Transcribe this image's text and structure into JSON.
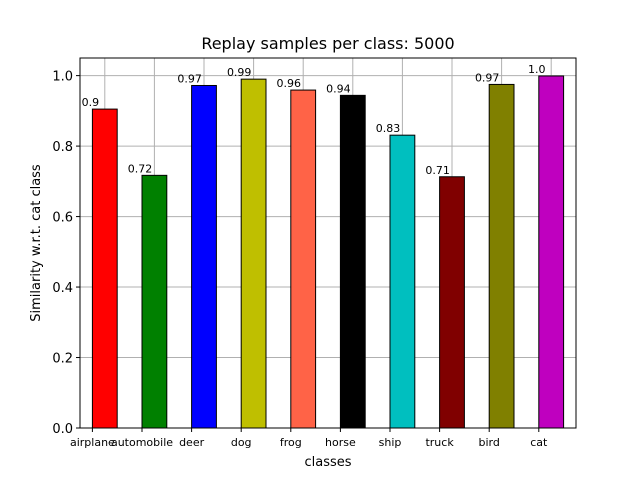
{
  "chart_data": {
    "type": "bar",
    "title": "Replay samples per class: 5000",
    "xlabel": "classes",
    "ylabel": "Similarity w.r.t. cat class",
    "categories": [
      "airplane",
      "automobile",
      "deer",
      "dog",
      "frog",
      "horse",
      "ship",
      "truck",
      "bird",
      "cat"
    ],
    "values": [
      0.905,
      0.717,
      0.972,
      0.99,
      0.959,
      0.944,
      0.831,
      0.713,
      0.975,
      0.999
    ],
    "value_labels": [
      "0.9",
      "0.72",
      "0.97",
      "0.99",
      "0.96",
      "0.94",
      "0.83",
      "0.71",
      "0.97",
      "1.0"
    ],
    "colors": [
      "#ff0000",
      "#008000",
      "#0000ff",
      "#bfbf00",
      "#ff6347",
      "#000000",
      "#00bfbf",
      "#800000",
      "#808000",
      "#bf00bf"
    ],
    "ylim": [
      0,
      1.05
    ],
    "yticks": [
      "0.0",
      "0.2",
      "0.4",
      "0.6",
      "0.8",
      "1.0"
    ],
    "grid": true,
    "legend": "none"
  }
}
